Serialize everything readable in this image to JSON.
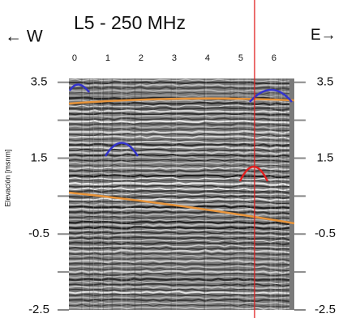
{
  "chart_data": {
    "type": "radargram",
    "title": "L5 - 250 MHz",
    "west_label": "← W",
    "east_label": "E→",
    "y_label": "Elevación  [msnm]",
    "xlim": [
      -0.17,
      6.61
    ],
    "xticks": [
      0,
      1,
      2,
      3,
      4,
      5,
      6
    ],
    "ylim": [
      -2.5,
      3.6
    ],
    "yticks": [
      3.5,
      1.5,
      -0.5,
      -2.5
    ],
    "yminor": [
      2.5,
      0.5,
      -1.5
    ],
    "y2lim": [
      -2.5,
      3.6
    ],
    "y2ticks": [
      3.5,
      1.5,
      -0.5,
      -2.5
    ]
  }
}
